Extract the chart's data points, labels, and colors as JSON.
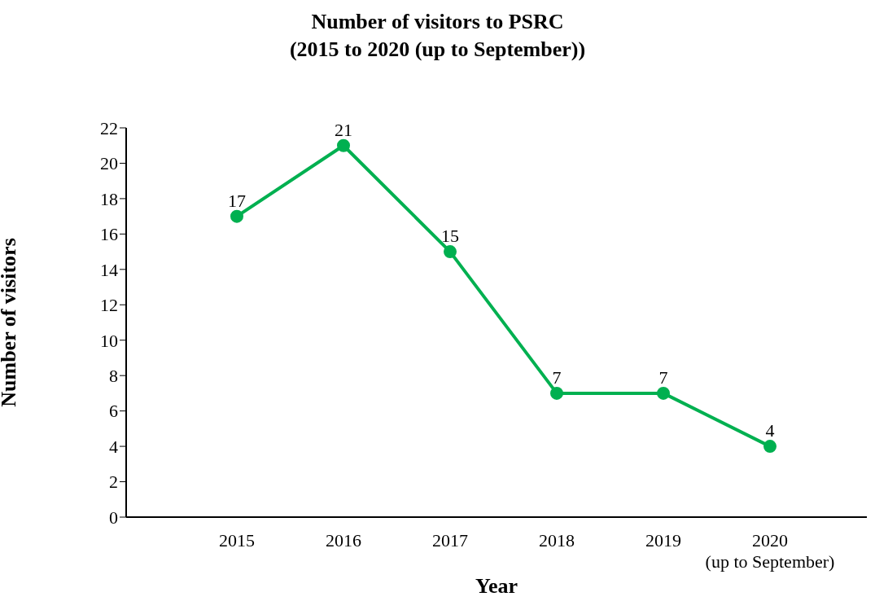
{
  "chart_data": {
    "type": "line",
    "title": "Number of visitors to PSRC\n(2015 to 2020 (up to September))",
    "xlabel": "Year",
    "ylabel": "Number of visitors",
    "categories": [
      "2015",
      "2016",
      "2017",
      "2018",
      "2019",
      "2020\n(up to September)"
    ],
    "series": [
      {
        "color": "#00b050",
        "values": [
          17,
          21,
          15,
          7,
          7,
          4
        ]
      }
    ],
    "ylim": [
      0,
      22
    ],
    "yticks": [
      0,
      2,
      4,
      6,
      8,
      10,
      12,
      14,
      16,
      18,
      20,
      22
    ],
    "grid": false,
    "legend": false,
    "marker": "circle",
    "line_style": "solid",
    "data_labels": true
  }
}
